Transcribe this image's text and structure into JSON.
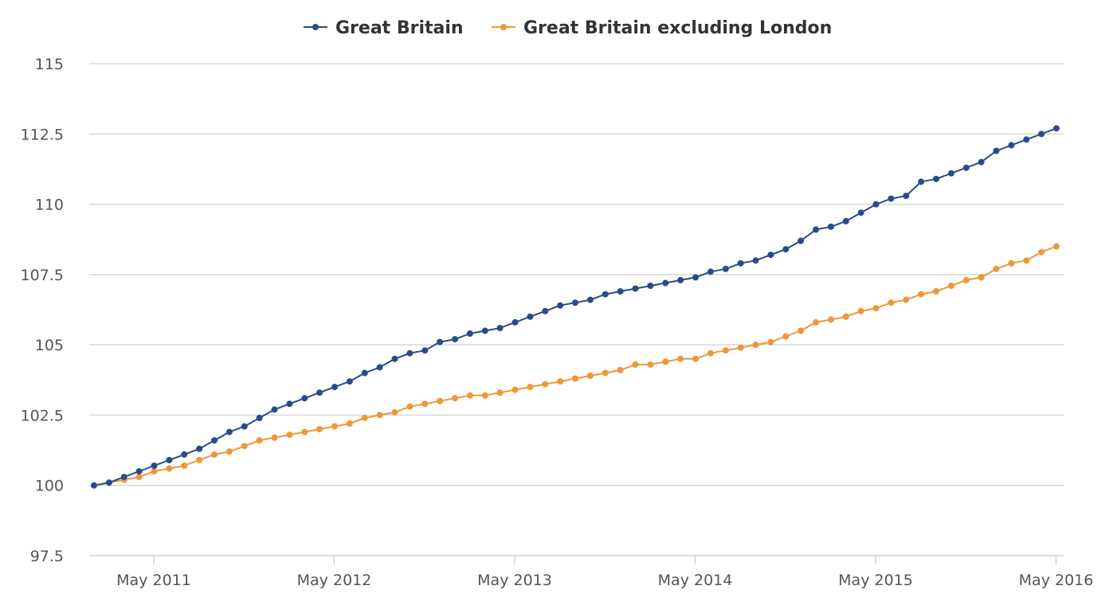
{
  "chart_data": {
    "type": "line",
    "title": "",
    "xlabel": "",
    "ylabel": "",
    "ylim": [
      97.5,
      115
    ],
    "yticks": [
      97.5,
      100,
      102.5,
      105,
      107.5,
      110,
      112.5,
      115
    ],
    "ytick_labels": [
      "97.5",
      "100",
      "102.5",
      "105",
      "107.5",
      "110",
      "112.5",
      "115"
    ],
    "x_start": "Jan 2011",
    "x_end": "May 2016",
    "x_frequency": "monthly",
    "xticks": [
      {
        "label": "May 2011",
        "index": 4
      },
      {
        "label": "May 2012",
        "index": 16
      },
      {
        "label": "May 2013",
        "index": 28
      },
      {
        "label": "May 2014",
        "index": 40
      },
      {
        "label": "May 2015",
        "index": 52
      },
      {
        "label": "May 2016",
        "index": 64
      }
    ],
    "grid": true,
    "legend_position": "top-center",
    "series": [
      {
        "name": "Great Britain",
        "color": "#2b4a8b",
        "values": [
          100.0,
          100.1,
          100.3,
          100.5,
          100.7,
          100.9,
          101.1,
          101.3,
          101.6,
          101.9,
          102.1,
          102.4,
          102.7,
          102.9,
          103.1,
          103.3,
          103.5,
          103.7,
          104.0,
          104.2,
          104.5,
          104.7,
          104.8,
          105.1,
          105.2,
          105.4,
          105.5,
          105.6,
          105.8,
          106.0,
          106.2,
          106.4,
          106.5,
          106.6,
          106.8,
          106.9,
          107.0,
          107.1,
          107.2,
          107.3,
          107.4,
          107.6,
          107.7,
          107.9,
          108.0,
          108.2,
          108.4,
          108.7,
          109.1,
          109.2,
          109.4,
          109.7,
          110.0,
          110.2,
          110.3,
          110.8,
          110.9,
          111.1,
          111.3,
          111.5,
          111.9,
          112.1,
          112.3,
          112.5,
          112.7
        ]
      },
      {
        "name": "Great Britain excluding London",
        "color": "#f0963a",
        "values": [
          100.0,
          100.1,
          100.2,
          100.3,
          100.5,
          100.6,
          100.7,
          100.9,
          101.1,
          101.2,
          101.4,
          101.6,
          101.7,
          101.8,
          101.9,
          102.0,
          102.1,
          102.2,
          102.4,
          102.5,
          102.6,
          102.8,
          102.9,
          103.0,
          103.1,
          103.2,
          103.2,
          103.3,
          103.4,
          103.5,
          103.6,
          103.7,
          103.8,
          103.9,
          104.0,
          104.1,
          104.3,
          104.3,
          104.4,
          104.5,
          104.5,
          104.7,
          104.8,
          104.9,
          105.0,
          105.1,
          105.3,
          105.5,
          105.8,
          105.9,
          106.0,
          106.2,
          106.3,
          106.5,
          106.6,
          106.8,
          106.9,
          107.1,
          107.3,
          107.4,
          107.7,
          107.9,
          108.0,
          108.3,
          108.5
        ]
      }
    ]
  },
  "colors": {
    "grid": "#d8d8d8",
    "axis": "#c8d2e0",
    "text": "#333333"
  }
}
